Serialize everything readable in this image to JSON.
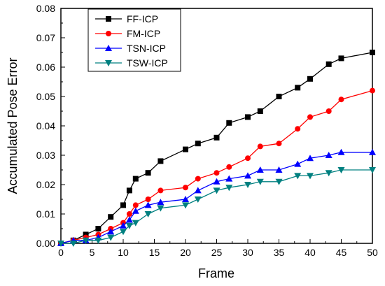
{
  "chart_data": {
    "type": "line",
    "title": "",
    "xlabel": "Frame",
    "ylabel": "Accumulated Pose Error",
    "xlim": [
      0,
      50
    ],
    "ylim": [
      0,
      0.08
    ],
    "xticks": [
      "0",
      "5",
      "10",
      "15",
      "20",
      "25",
      "30",
      "35",
      "40",
      "45",
      "50"
    ],
    "yticks": [
      "0.00",
      "0.01",
      "0.02",
      "0.03",
      "0.04",
      "0.05",
      "0.06",
      "0.07",
      "0.08"
    ],
    "legend_position": "top-left",
    "grid": false,
    "x": [
      0,
      2,
      4,
      6,
      8,
      10,
      11,
      12,
      14,
      16,
      20,
      22,
      25,
      27,
      30,
      32,
      35,
      38,
      40,
      43,
      45,
      50
    ],
    "series": [
      {
        "name": "FF-ICP",
        "color": "#000000",
        "marker": "square",
        "values": [
          0.0,
          0.001,
          0.003,
          0.005,
          0.009,
          0.013,
          0.018,
          0.022,
          0.024,
          0.028,
          0.032,
          0.034,
          0.036,
          0.041,
          0.043,
          0.045,
          0.05,
          0.053,
          0.056,
          0.061,
          0.063,
          0.065
        ]
      },
      {
        "name": "FM-ICP",
        "color": "#ff0000",
        "marker": "circle",
        "values": [
          0.0,
          0.001,
          0.002,
          0.003,
          0.005,
          0.007,
          0.01,
          0.013,
          0.015,
          0.018,
          0.019,
          0.022,
          0.024,
          0.026,
          0.029,
          0.033,
          0.034,
          0.039,
          0.043,
          0.045,
          0.049,
          0.052
        ]
      },
      {
        "name": "TSN-ICP",
        "color": "#0000ff",
        "marker": "triangle-up",
        "values": [
          0.0,
          0.001,
          0.001,
          0.002,
          0.004,
          0.006,
          0.008,
          0.011,
          0.013,
          0.014,
          0.015,
          0.018,
          0.021,
          0.022,
          0.023,
          0.025,
          0.025,
          0.027,
          0.029,
          0.03,
          0.031,
          0.031
        ]
      },
      {
        "name": "TSW-ICP",
        "color": "#008080",
        "marker": "triangle-down",
        "values": [
          0.0,
          0.0,
          0.001,
          0.001,
          0.002,
          0.004,
          0.006,
          0.007,
          0.01,
          0.012,
          0.013,
          0.015,
          0.018,
          0.019,
          0.02,
          0.021,
          0.021,
          0.023,
          0.023,
          0.024,
          0.025,
          0.025
        ]
      }
    ]
  }
}
